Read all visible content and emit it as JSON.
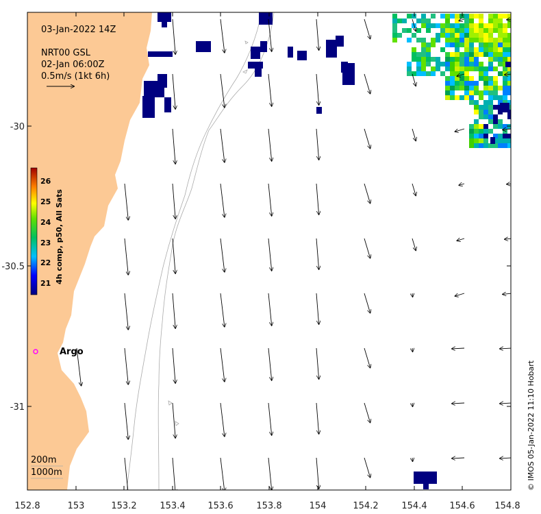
{
  "header": {
    "datetime": "03-Jan-2022 14Z",
    "product": "NRT00 GSL",
    "current_time": "02-Jan 06:00Z",
    "scale_label": "0.5m/s (1kt 6h)"
  },
  "colorbar": {
    "title": "4h comp, p50, All Sats",
    "ticks": [
      "26",
      "25",
      "24",
      "23",
      "22",
      "21"
    ]
  },
  "axes": {
    "x_ticks": [
      "152.8",
      "153",
      "153.2",
      "153.4",
      "153.6",
      "153.8",
      "154",
      "154.2",
      "154.4",
      "154.6",
      "154.8"
    ],
    "y_ticks": [
      "-30",
      "-30.5",
      "-31"
    ]
  },
  "labels": {
    "argo": "Argo",
    "contour_200": "200m",
    "contour_1000": "1000m"
  },
  "credit": "© IMOS 05-Jan-2022 11:10 Hobart",
  "colors": {
    "land": "#fcc995",
    "argo_marker": "#ff00ff",
    "contour": "#aaaaaa",
    "sst_low": "#000080",
    "sst_high": "#ffff00"
  },
  "chart_data": {
    "type": "map",
    "x_range": [
      152.8,
      154.8
    ],
    "y_range": [
      -31.3,
      -29.6
    ],
    "argo_float": {
      "lon": 152.83,
      "lat": -30.81
    }
  }
}
